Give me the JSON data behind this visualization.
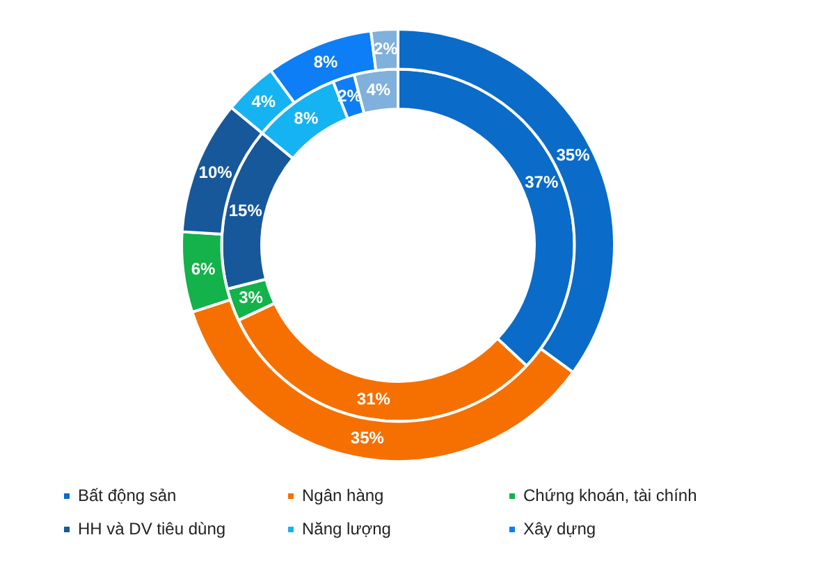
{
  "chart_data": {
    "type": "donut",
    "categories": [
      "Bất động sản",
      "Ngân hàng",
      "Chứng khoán, tài chính",
      "HH và DV tiêu dùng",
      "Năng lượng",
      "Xây dựng",
      null
    ],
    "colors": [
      "#0b6bc8",
      "#f57000",
      "#13b24a",
      "#17589a",
      "#16b3f3",
      "#0d7ef5",
      "#80b0dc"
    ],
    "series": [
      {
        "values": [
          35,
          35,
          6,
          10,
          4,
          8,
          2
        ],
        "value_labels": [
          "35%",
          "35%",
          "6%",
          "10%",
          "4%",
          "8%",
          "2%"
        ]
      },
      {
        "values": [
          37,
          31,
          3,
          15,
          8,
          2,
          4
        ],
        "value_labels": [
          "37%",
          "31%",
          "3%",
          "15%",
          "8%",
          "2%",
          "4%"
        ]
      }
    ],
    "legend": "bottom"
  }
}
